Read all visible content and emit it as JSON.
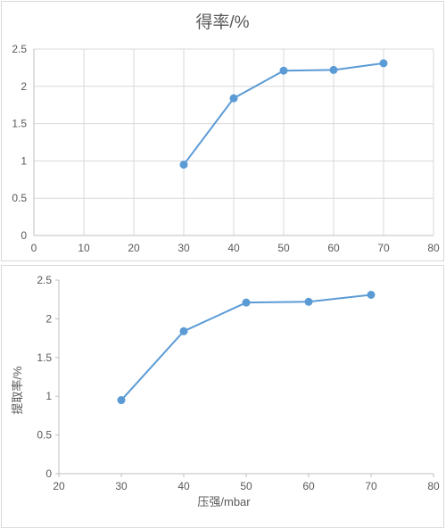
{
  "chart_data": [
    {
      "type": "line",
      "title": "得率/%",
      "xlabel": "",
      "ylabel": "",
      "x": [
        30,
        40,
        50,
        60,
        70
      ],
      "y": [
        0.95,
        1.84,
        2.21,
        2.22,
        2.31
      ],
      "xlim": [
        0,
        80
      ],
      "ylim": [
        0,
        2.5
      ],
      "xticks": [
        "0",
        "10",
        "20",
        "30",
        "40",
        "50",
        "60",
        "70",
        "80"
      ],
      "yticks": [
        "0",
        "0.5",
        "1",
        "1.5",
        "2",
        "2.5"
      ],
      "grid": "both",
      "color": "#5b9bd5"
    },
    {
      "type": "line",
      "title": "",
      "xlabel": "压强/mbar",
      "ylabel": "提取率/%",
      "x": [
        30,
        40,
        50,
        60,
        70
      ],
      "y": [
        0.95,
        1.84,
        2.21,
        2.22,
        2.31
      ],
      "xlim": [
        20,
        80
      ],
      "ylim": [
        0,
        2.5
      ],
      "xticks": [
        "20",
        "30",
        "40",
        "50",
        "60",
        "70",
        "80"
      ],
      "yticks": [
        "0",
        "0.5",
        "1",
        "1.5",
        "2",
        "2.5"
      ],
      "grid": "none",
      "color": "#5b9bd5"
    }
  ]
}
